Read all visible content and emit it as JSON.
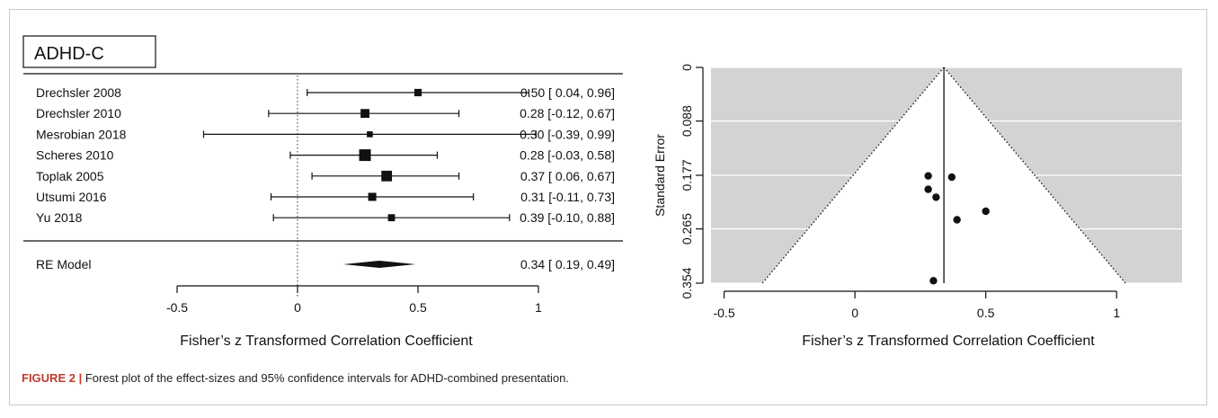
{
  "figure": {
    "caption_label": "FIGURE 2 |",
    "caption_text": " Forest plot of the effect-sizes and 95% confidence intervals for ADHD-combined presentation."
  },
  "chart_data": [
    {
      "type": "forest",
      "panel_label": "ADHD-C",
      "xlabel": "Fisher’s z Transformed Correlation Coefficient",
      "xlim": [
        -0.5,
        1
      ],
      "xticks": [
        -0.5,
        0,
        0.5,
        1
      ],
      "xtick_labels": [
        "-0.5",
        "0",
        "0.5",
        "1"
      ],
      "reference_line": 0,
      "studies": [
        {
          "label": "Drechsler 2008",
          "estimate": 0.5,
          "ci_low": 0.04,
          "ci_high": 0.96,
          "text": "0.50 [ 0.04, 0.96]",
          "weight": 0.4
        },
        {
          "label": "Drechsler 2010",
          "estimate": 0.28,
          "ci_low": -0.12,
          "ci_high": 0.67,
          "text": "0.28 [-0.12, 0.67]",
          "weight": 0.6
        },
        {
          "label": "Mesrobian 2018",
          "estimate": 0.3,
          "ci_low": -0.39,
          "ci_high": 0.99,
          "text": "0.30 [-0.39, 0.99]",
          "weight": 0.2
        },
        {
          "label": "Scheres 2010",
          "estimate": 0.28,
          "ci_low": -0.03,
          "ci_high": 0.58,
          "text": "0.28 [-0.03, 0.58]",
          "weight": 1.0
        },
        {
          "label": "Toplak 2005",
          "estimate": 0.37,
          "ci_low": 0.06,
          "ci_high": 0.67,
          "text": "0.37 [ 0.06, 0.67]",
          "weight": 0.85
        },
        {
          "label": "Utsumi 2016",
          "estimate": 0.31,
          "ci_low": -0.11,
          "ci_high": 0.73,
          "text": "0.31 [-0.11, 0.73]",
          "weight": 0.5
        },
        {
          "label": "Yu 2018",
          "estimate": 0.39,
          "ci_low": -0.1,
          "ci_high": 0.88,
          "text": "0.39 [-0.10, 0.88]",
          "weight": 0.35
        }
      ],
      "summary": {
        "label": "RE Model",
        "estimate": 0.34,
        "ci_low": 0.19,
        "ci_high": 0.49,
        "text": "0.34 [ 0.19, 0.49]"
      }
    },
    {
      "type": "scatter",
      "subtype": "funnel",
      "xlabel": "Fisher’s z Transformed Correlation Coefficient",
      "ylabel": "Standard Error",
      "xlim": [
        -0.55,
        1.25
      ],
      "xticks": [
        -0.5,
        0,
        0.5,
        1
      ],
      "xtick_labels": [
        "-0.5",
        "0",
        "0.5",
        "1"
      ],
      "ylim": [
        0,
        0.354
      ],
      "y_reversed": true,
      "yticks": [
        0,
        0.088,
        0.177,
        0.265,
        0.354
      ],
      "ytick_labels": [
        "0",
        "0.088",
        "0.177",
        "0.265",
        "0.354"
      ],
      "center": 0.34,
      "grid": true,
      "background": "#d3d3d3",
      "points": [
        {
          "x": 0.28,
          "y": 0.178
        },
        {
          "x": 0.37,
          "y": 0.18
        },
        {
          "x": 0.28,
          "y": 0.2
        },
        {
          "x": 0.31,
          "y": 0.213
        },
        {
          "x": 0.5,
          "y": 0.236
        },
        {
          "x": 0.39,
          "y": 0.25
        },
        {
          "x": 0.3,
          "y": 0.35
        }
      ]
    }
  ]
}
